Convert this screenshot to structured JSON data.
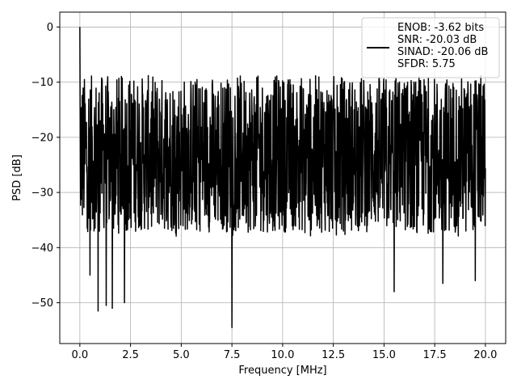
{
  "chart_data": {
    "type": "line",
    "title": "",
    "xlabel": "Frequency [MHz]",
    "ylabel": "PSD [dB]",
    "xlim": [
      -0.99,
      21.0
    ],
    "ylim": [
      -57.4,
      2.7
    ],
    "xticks": [
      0.0,
      2.5,
      5.0,
      7.5,
      10.0,
      12.5,
      15.0,
      17.5,
      20.0
    ],
    "xtick_labels": [
      "0.0",
      "2.5",
      "5.0",
      "7.5",
      "10.0",
      "12.5",
      "15.0",
      "17.5",
      "20.0"
    ],
    "yticks": [
      0,
      -10,
      -20,
      -30,
      -40,
      -50
    ],
    "ytick_labels": [
      "0",
      "−10",
      "−20",
      "−30",
      "−40",
      "−50"
    ],
    "grid": true,
    "legend_position": "top-right",
    "series": [
      {
        "color": "#000000",
        "noise_floor_range": [
          -38,
          -8
        ],
        "peak": {
          "x": 0.0,
          "y": 0.0
        },
        "x_range": [
          0.0,
          20.0
        ],
        "notable_dips": [
          {
            "x": 0.5,
            "y": -42
          },
          {
            "x": 0.5,
            "y": -45
          },
          {
            "x": 0.9,
            "y": -51.5
          },
          {
            "x": 1.3,
            "y": -50.5
          },
          {
            "x": 1.6,
            "y": -51
          },
          {
            "x": 2.2,
            "y": -50
          },
          {
            "x": 7.5,
            "y": -54.5
          },
          {
            "x": 15.5,
            "y": -48
          },
          {
            "x": 17.9,
            "y": -46.5
          },
          {
            "x": 19.5,
            "y": -46
          }
        ]
      }
    ],
    "legend": {
      "line_color": "#000000",
      "entries": [
        "ENOB: -3.62 bits",
        "SNR: -20.03 dB",
        "SINAD: -20.06 dB",
        "SFDR: 5.75"
      ]
    }
  }
}
